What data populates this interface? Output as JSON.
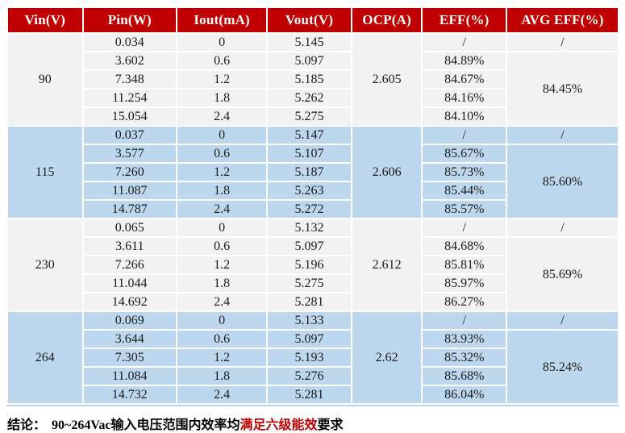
{
  "colors": {
    "header_bg": "#C00000",
    "header_text": "#FFFFFF",
    "group_gray": "#F2F2F2",
    "group_blue": "#BDD7EE",
    "highlight_red": "#C00000"
  },
  "table": {
    "columns": [
      {
        "label": "Vin(V)"
      },
      {
        "label": "Pin(W)"
      },
      {
        "label": "Iout(mA)"
      },
      {
        "label": "Vout(V)"
      },
      {
        "label": "OCP(A)"
      },
      {
        "label": "EFF(%)"
      },
      {
        "label": "AVG EFF(%)"
      }
    ],
    "groups": [
      {
        "vin": "90",
        "ocp": "2.605",
        "avg_eff_first": "/",
        "avg_eff": "84.45%",
        "shade": "gray",
        "rows": [
          {
            "pin": "0.034",
            "iout": "0",
            "vout": "5.145",
            "eff": "/"
          },
          {
            "pin": "3.602",
            "iout": "0.6",
            "vout": "5.097",
            "eff": "84.89%"
          },
          {
            "pin": "7.348",
            "iout": "1.2",
            "vout": "5.185",
            "eff": "84.67%"
          },
          {
            "pin": "11.254",
            "iout": "1.8",
            "vout": "5.262",
            "eff": "84.16%"
          },
          {
            "pin": "15.054",
            "iout": "2.4",
            "vout": "5.275",
            "eff": "84.10%"
          }
        ]
      },
      {
        "vin": "115",
        "ocp": "2.606",
        "avg_eff_first": "/",
        "avg_eff": "85.60%",
        "shade": "blue",
        "rows": [
          {
            "pin": "0.037",
            "iout": "0",
            "vout": "5.147",
            "eff": "/"
          },
          {
            "pin": "3.577",
            "iout": "0.6",
            "vout": "5.107",
            "eff": "85.67%"
          },
          {
            "pin": "7.260",
            "iout": "1.2",
            "vout": "5.187",
            "eff": "85.73%"
          },
          {
            "pin": "11.087",
            "iout": "1.8",
            "vout": "5.263",
            "eff": "85.44%"
          },
          {
            "pin": "14.787",
            "iout": "2.4",
            "vout": "5.272",
            "eff": "85.57%"
          }
        ]
      },
      {
        "vin": "230",
        "ocp": "2.612",
        "avg_eff_first": "/",
        "avg_eff": "85.69%",
        "shade": "gray",
        "rows": [
          {
            "pin": "0.065",
            "iout": "0",
            "vout": "5.132",
            "eff": "/"
          },
          {
            "pin": "3.611",
            "iout": "0.6",
            "vout": "5.097",
            "eff": "84.68%"
          },
          {
            "pin": "7.266",
            "iout": "1.2",
            "vout": "5.196",
            "eff": "85.81%"
          },
          {
            "pin": "11.044",
            "iout": "1.8",
            "vout": "5.275",
            "eff": "85.97%"
          },
          {
            "pin": "14.692",
            "iout": "2.4",
            "vout": "5.281",
            "eff": "86.27%"
          }
        ]
      },
      {
        "vin": "264",
        "ocp": "2.62",
        "avg_eff_first": "/",
        "avg_eff": "85.24%",
        "shade": "blue",
        "rows": [
          {
            "pin": "0.069",
            "iout": "0",
            "vout": "5.133",
            "eff": "/"
          },
          {
            "pin": "3.644",
            "iout": "0.6",
            "vout": "5.097",
            "eff": "83.93%"
          },
          {
            "pin": "7.305",
            "iout": "1.2",
            "vout": "5.193",
            "eff": "85.32%"
          },
          {
            "pin": "11.084",
            "iout": "1.8",
            "vout": "5.276",
            "eff": "85.68%"
          },
          {
            "pin": "14.732",
            "iout": "2.4",
            "vout": "5.281",
            "eff": "86.04%"
          }
        ]
      }
    ]
  },
  "conclusion": {
    "label": "结论：",
    "text_before": "90~264Vac输入电压范围内效率均",
    "highlight": "满足六级能效",
    "text_after": "要求"
  }
}
